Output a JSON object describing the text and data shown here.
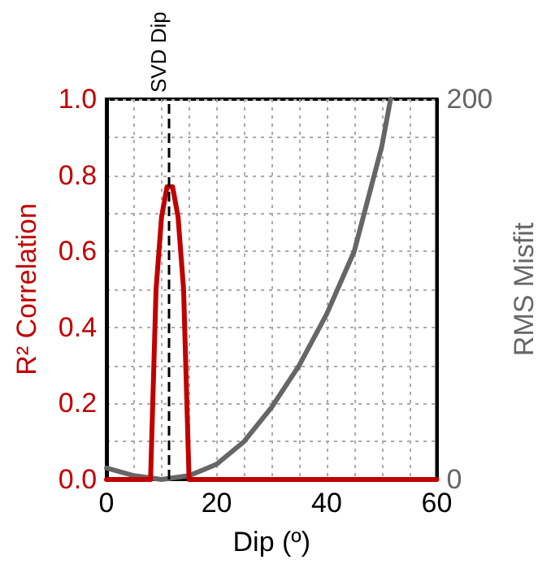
{
  "chart_data": {
    "type": "line",
    "xlabel": "Dip (º)",
    "ylabel": "R² Correlation",
    "y2label": "RMS Misfit",
    "series": [
      {
        "color": "#c00000",
        "axis": "y",
        "x": [
          0,
          8,
          9,
          10,
          11,
          12,
          13,
          14,
          15,
          60
        ],
        "values": [
          0,
          0,
          0.5,
          0.69,
          0.77,
          0.77,
          0.69,
          0.5,
          0,
          0
        ]
      },
      {
        "color": "#666666",
        "axis": "y2",
        "x": [
          0,
          5,
          10,
          15,
          20,
          25,
          30,
          35,
          40,
          45,
          50,
          51.6
        ],
        "values": [
          6,
          2,
          0,
          2,
          8,
          20,
          38,
          60,
          87,
          120,
          175,
          200
        ]
      }
    ],
    "xlim": [
      0,
      60
    ],
    "xticks": [
      0,
      {
        "value": 5,
        "label": null
      },
      {
        "value": 10,
        "label": null
      },
      {
        "value": 15,
        "label": null
      },
      20,
      {
        "value": 25,
        "label": null
      },
      {
        "value": 30,
        "label": null
      },
      {
        "value": 35,
        "label": null
      },
      40,
      {
        "value": 45,
        "label": null
      },
      {
        "value": 50,
        "label": null
      },
      {
        "value": 55,
        "label": null
      },
      60
    ],
    "ylim": [
      0,
      1
    ],
    "yticks": [
      {
        "value": 0,
        "label": "0.0"
      },
      {
        "value": 0.1,
        "label": null
      },
      {
        "value": 0.2,
        "label": "0.2"
      },
      {
        "value": 0.3,
        "label": null
      },
      {
        "value": 0.4,
        "label": "0.4"
      },
      {
        "value": 0.5,
        "label": null
      },
      {
        "value": 0.6,
        "label": "0.6"
      },
      {
        "value": 0.7,
        "label": null
      },
      {
        "value": 0.8,
        "label": "0.8"
      },
      {
        "value": 0.9,
        "label": null
      },
      {
        "value": 1,
        "label": "1.0"
      }
    ],
    "y2lim": [
      0,
      200
    ],
    "y2ticks": [
      0,
      200
    ],
    "ref_lines": [
      {
        "axis": "x",
        "value": 11.3,
        "label": "SVD Dip",
        "color": "#000000",
        "line_style": "dashed"
      }
    ],
    "grid": true,
    "marker": "none",
    "line_style": "solid"
  }
}
